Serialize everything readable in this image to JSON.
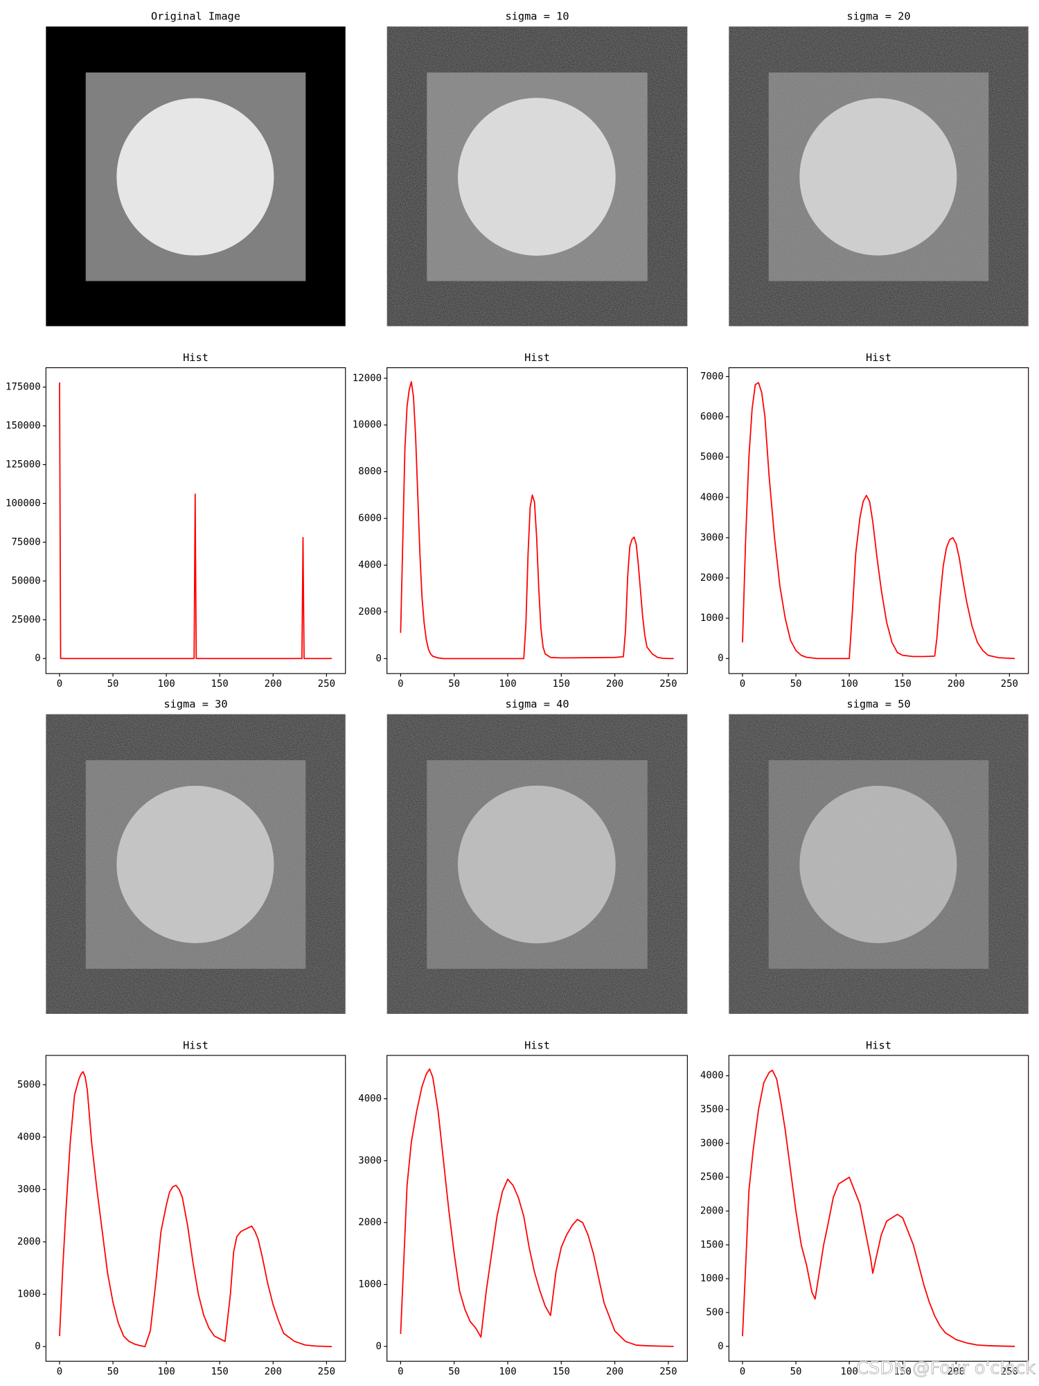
{
  "chart_data": [
    {
      "type": "image",
      "title": "Original Image",
      "colors": [
        "#000000",
        "#808080",
        "#e6e6e6"
      ],
      "noise": false
    },
    {
      "type": "image",
      "title": "sigma = 10",
      "colors": [
        "#141414",
        "#7e7e7e",
        "#e0e0e0"
      ],
      "noise": true
    },
    {
      "type": "image",
      "title": "sigma = 20",
      "colors": [
        "#1b1b1b",
        "#767676",
        "#d2d2d2"
      ],
      "noise": true
    },
    {
      "type": "line",
      "title": "Hist",
      "color": "#ff0000",
      "x": [
        0,
        1,
        126,
        127,
        128,
        227,
        228,
        229,
        255
      ],
      "values": [
        178000,
        0,
        0,
        106000,
        0,
        0,
        78000,
        0,
        0
      ],
      "xlim": [
        -12.75,
        267.75
      ],
      "xticks": [
        0,
        50,
        100,
        150,
        200,
        250
      ],
      "ylim": [
        -9700,
        187500
      ],
      "yticks": [
        0,
        25000,
        50000,
        75000,
        100000,
        125000,
        150000,
        175000
      ]
    },
    {
      "type": "line",
      "title": "Hist",
      "color": "#ff0000",
      "x": [
        0,
        2,
        4,
        6,
        8,
        10,
        12,
        14,
        16,
        18,
        20,
        22,
        24,
        26,
        28,
        30,
        35,
        40,
        50,
        100,
        115,
        117,
        119,
        121,
        123,
        125,
        127,
        129,
        131,
        133,
        135,
        140,
        150,
        200,
        208,
        210,
        212,
        214,
        216,
        218,
        220,
        222,
        224,
        226,
        228,
        230,
        235,
        240,
        245,
        255
      ],
      "values": [
        1100,
        5000,
        9000,
        10800,
        11500,
        11850,
        11200,
        9500,
        7000,
        4500,
        2600,
        1500,
        800,
        400,
        200,
        100,
        30,
        0,
        0,
        0,
        0,
        1500,
        4500,
        6500,
        7000,
        6700,
        5200,
        3000,
        1300,
        500,
        200,
        50,
        30,
        50,
        80,
        1200,
        3500,
        4800,
        5100,
        5200,
        4900,
        4000,
        2900,
        1800,
        1000,
        500,
        200,
        50,
        10,
        0
      ],
      "xlim": [
        -12.75,
        267.75
      ],
      "xticks": [
        0,
        50,
        100,
        150,
        200,
        250
      ],
      "ylim": [
        -640,
        12450
      ],
      "yticks": [
        0,
        2000,
        4000,
        6000,
        8000,
        10000,
        12000
      ]
    },
    {
      "type": "line",
      "title": "Hist",
      "color": "#ff0000",
      "x": [
        0,
        3,
        6,
        9,
        12,
        15,
        18,
        21,
        25,
        30,
        35,
        40,
        45,
        50,
        55,
        60,
        70,
        80,
        90,
        100,
        103,
        106,
        110,
        113,
        116,
        119,
        122,
        126,
        130,
        135,
        140,
        145,
        150,
        160,
        170,
        180,
        182,
        185,
        188,
        191,
        194,
        197,
        200,
        203,
        206,
        210,
        215,
        220,
        225,
        230,
        240,
        255
      ],
      "values": [
        400,
        3000,
        5000,
        6200,
        6800,
        6850,
        6600,
        6000,
        4500,
        3000,
        1800,
        1000,
        450,
        200,
        80,
        30,
        0,
        0,
        0,
        0,
        1200,
        2600,
        3500,
        3900,
        4050,
        3900,
        3400,
        2500,
        1700,
        900,
        400,
        150,
        80,
        50,
        50,
        60,
        500,
        1500,
        2300,
        2750,
        2950,
        3000,
        2850,
        2500,
        2000,
        1400,
        800,
        400,
        200,
        80,
        20,
        0
      ],
      "xlim": [
        -12.75,
        267.75
      ],
      "xticks": [
        0,
        50,
        100,
        150,
        200,
        250
      ],
      "ylim": [
        -373,
        7220
      ],
      "yticks": [
        0,
        1000,
        2000,
        3000,
        4000,
        5000,
        6000,
        7000
      ]
    },
    {
      "type": "image",
      "title": "sigma = 30",
      "colors": [
        "#202020",
        "#727272",
        "#c6c6c6"
      ],
      "noise": true
    },
    {
      "type": "image",
      "title": "sigma = 40",
      "colors": [
        "#242424",
        "#6e6e6e",
        "#bcbcbc"
      ],
      "noise": true
    },
    {
      "type": "image",
      "title": "sigma = 50",
      "colors": [
        "#272727",
        "#6b6b6b",
        "#b4b4b4"
      ],
      "noise": true
    },
    {
      "type": "line",
      "title": "Hist",
      "color": "#ff0000",
      "x": [
        0,
        3,
        6,
        10,
        14,
        18,
        20,
        22,
        24,
        26,
        30,
        35,
        40,
        45,
        50,
        55,
        60,
        65,
        70,
        75,
        80,
        85,
        90,
        95,
        100,
        103,
        106,
        109,
        112,
        115,
        120,
        125,
        130,
        135,
        140,
        145,
        150,
        155,
        160,
        163,
        166,
        170,
        175,
        180,
        183,
        186,
        190,
        195,
        200,
        205,
        210,
        220,
        230,
        240,
        255
      ],
      "values": [
        200,
        1500,
        2600,
        3900,
        4800,
        5100,
        5200,
        5250,
        5150,
        4900,
        3900,
        3000,
        2200,
        1400,
        850,
        450,
        200,
        100,
        50,
        20,
        0,
        300,
        1200,
        2200,
        2700,
        2950,
        3050,
        3080,
        3000,
        2850,
        2300,
        1600,
        1000,
        600,
        350,
        200,
        150,
        100,
        1000,
        1800,
        2100,
        2200,
        2250,
        2300,
        2200,
        2050,
        1700,
        1200,
        800,
        500,
        250,
        100,
        30,
        10,
        0
      ],
      "xlim": [
        -12.75,
        267.75
      ],
      "xticks": [
        0,
        50,
        100,
        150,
        200,
        250
      ],
      "ylim": [
        -280,
        5560
      ],
      "yticks": [
        0,
        1000,
        2000,
        3000,
        4000,
        5000
      ]
    },
    {
      "type": "line",
      "title": "Hist",
      "color": "#ff0000",
      "x": [
        0,
        3,
        6,
        10,
        15,
        20,
        24,
        27,
        30,
        35,
        40,
        45,
        50,
        55,
        60,
        65,
        70,
        75,
        80,
        85,
        90,
        95,
        100,
        105,
        110,
        115,
        120,
        125,
        130,
        135,
        140,
        145,
        150,
        155,
        160,
        165,
        170,
        175,
        180,
        185,
        190,
        200,
        210,
        220,
        230,
        240,
        255
      ],
      "values": [
        200,
        1400,
        2600,
        3300,
        3800,
        4200,
        4400,
        4480,
        4350,
        3800,
        3000,
        2200,
        1500,
        900,
        600,
        400,
        300,
        150,
        900,
        1500,
        2100,
        2500,
        2700,
        2600,
        2400,
        2100,
        1600,
        1200,
        900,
        650,
        500,
        1200,
        1600,
        1800,
        1950,
        2050,
        2000,
        1800,
        1500,
        1100,
        700,
        250,
        80,
        20,
        10,
        5,
        0
      ],
      "xlim": [
        -12.75,
        267.75
      ],
      "xticks": [
        0,
        50,
        100,
        150,
        200,
        250
      ],
      "ylim": [
        -240,
        4700
      ],
      "yticks": [
        0,
        1000,
        2000,
        3000,
        4000
      ]
    },
    {
      "type": "line",
      "title": "Hist",
      "color": "#ff0000",
      "x": [
        0,
        3,
        6,
        10,
        15,
        20,
        25,
        28,
        32,
        36,
        40,
        45,
        50,
        55,
        60,
        65,
        68,
        72,
        76,
        80,
        85,
        90,
        95,
        100,
        105,
        110,
        115,
        120,
        122,
        125,
        130,
        135,
        140,
        145,
        150,
        155,
        160,
        165,
        170,
        175,
        180,
        185,
        190,
        200,
        210,
        220,
        230,
        240,
        255
      ],
      "values": [
        150,
        1200,
        2300,
        2900,
        3500,
        3900,
        4050,
        4080,
        3950,
        3600,
        3200,
        2600,
        2000,
        1500,
        1200,
        800,
        700,
        1100,
        1500,
        1800,
        2200,
        2400,
        2450,
        2500,
        2300,
        2100,
        1700,
        1300,
        1080,
        1300,
        1650,
        1850,
        1900,
        1950,
        1900,
        1700,
        1500,
        1200,
        900,
        650,
        450,
        300,
        200,
        100,
        50,
        20,
        10,
        5,
        0
      ],
      "xlim": [
        -12.75,
        267.75
      ],
      "xticks": [
        0,
        50,
        100,
        150,
        200,
        250
      ],
      "ylim": [
        -220,
        4300
      ],
      "yticks": [
        0,
        500,
        1000,
        1500,
        2000,
        2500,
        3000,
        3500,
        4000
      ]
    }
  ],
  "watermark": "CSDN @Four o'clock"
}
